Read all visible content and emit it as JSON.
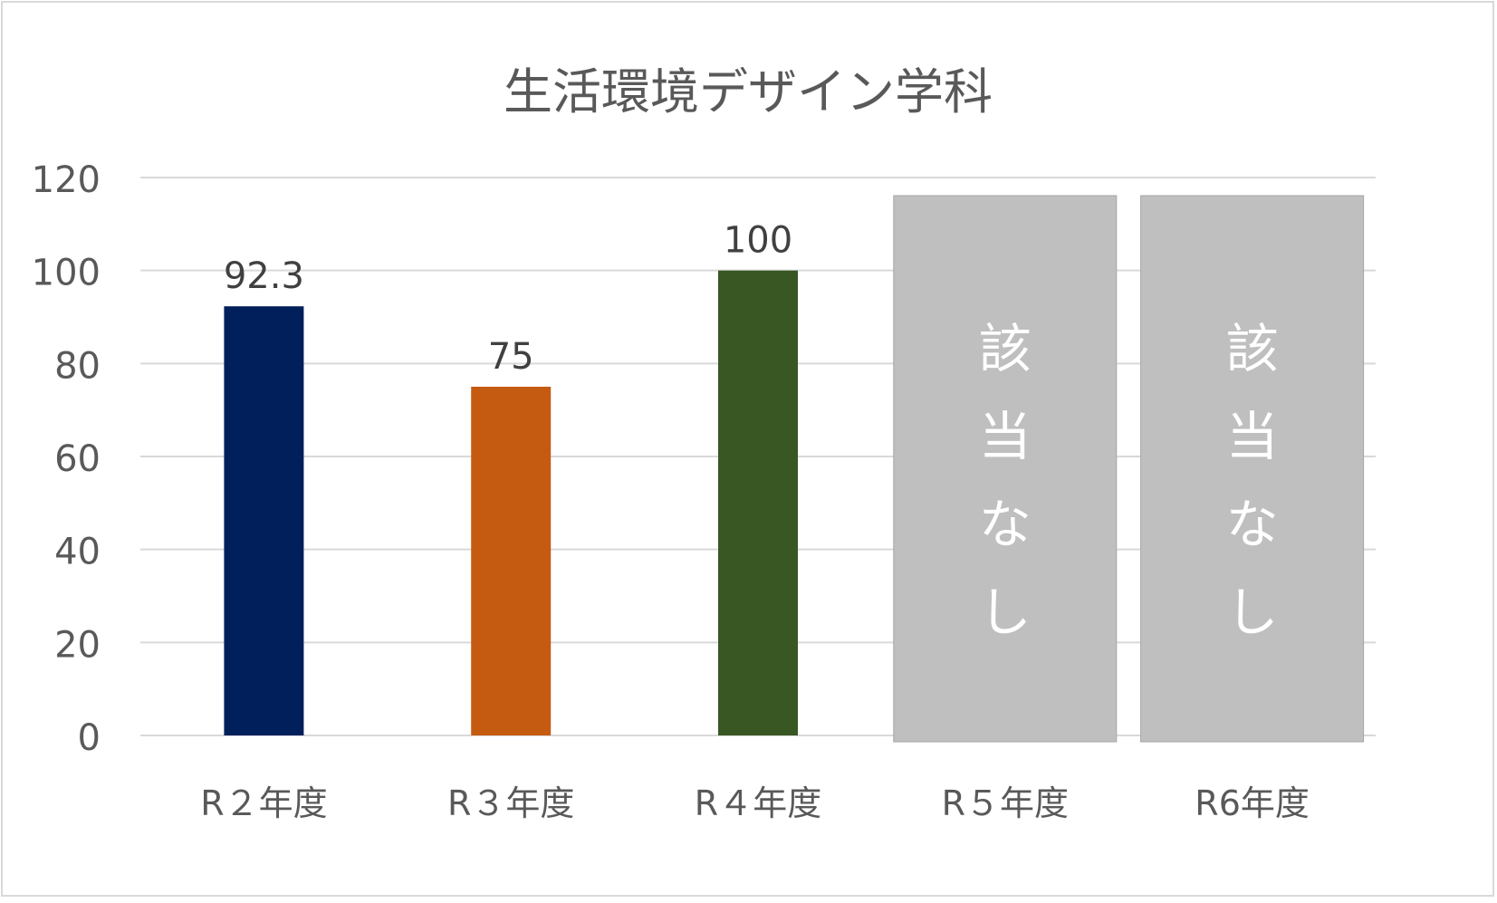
{
  "chart_data": {
    "type": "bar",
    "title": "生活環境デザイン学科",
    "categories": [
      "R２年度",
      "R３年度",
      "R４年度",
      "R５年度",
      "R6年度"
    ],
    "values": [
      92.3,
      75,
      100,
      null,
      null
    ],
    "data_labels": [
      "92.3",
      "75",
      "100",
      "",
      ""
    ],
    "bar_colors": [
      "#001f5b",
      "#c55a11",
      "#385723",
      "#bfbfbf",
      "#bfbfbf"
    ],
    "na_label": "該当なし",
    "ylim": [
      0,
      120
    ],
    "yticks": [
      "0",
      "20",
      "40",
      "60",
      "80",
      "100",
      "120"
    ],
    "grid": true,
    "legend": "none"
  },
  "colors": {
    "grid": "#d9d9d9",
    "axis_text": "#595959",
    "data_label_text": "#404040",
    "na_box": "#bfbfbf",
    "na_text": "#ffffff"
  }
}
